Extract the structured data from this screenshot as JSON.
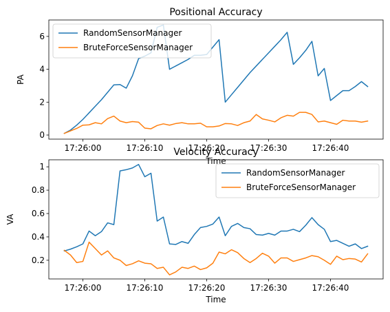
{
  "chart_data": [
    {
      "type": "line",
      "title": "Positional Accuracy",
      "xlabel": "Time",
      "ylabel": "PA",
      "x_start": "17:25:57",
      "x_step_seconds": 1,
      "xticks": [
        "17:26:00",
        "17:26:10",
        "17:26:20",
        "17:26:30",
        "17:26:40"
      ],
      "yticks": [
        0,
        2,
        4,
        6
      ],
      "ylim": [
        -0.25,
        7.0
      ],
      "legend": "upper-left",
      "series": [
        {
          "name": "RandomSensorManager",
          "color": "#1f77b4",
          "values": [
            0.1,
            0.3,
            0.6,
            0.95,
            1.35,
            1.75,
            2.15,
            2.6,
            3.05,
            3.07,
            2.85,
            3.6,
            4.65,
            4.8,
            5.0,
            6.55,
            6.7,
            4.0,
            4.2,
            4.4,
            4.6,
            4.85,
            4.85,
            4.9,
            5.35,
            5.8,
            2.0,
            2.45,
            2.9,
            3.35,
            3.8,
            4.2,
            4.6,
            5.0,
            5.4,
            5.8,
            6.25,
            4.3,
            4.7,
            5.15,
            5.7,
            3.6,
            4.05,
            2.1,
            2.4,
            2.7,
            2.7,
            2.95,
            3.25,
            2.95
          ]
        },
        {
          "name": "BruteForceSensorManager",
          "color": "#ff7f0e",
          "values": [
            0.1,
            0.25,
            0.4,
            0.6,
            0.62,
            0.75,
            0.68,
            1.0,
            1.15,
            0.85,
            0.75,
            0.82,
            0.78,
            0.42,
            0.38,
            0.58,
            0.68,
            0.6,
            0.7,
            0.75,
            0.68,
            0.68,
            0.72,
            0.5,
            0.5,
            0.55,
            0.7,
            0.68,
            0.58,
            0.75,
            0.85,
            1.25,
            0.98,
            0.9,
            0.8,
            1.05,
            1.2,
            1.15,
            1.38,
            1.38,
            1.25,
            0.8,
            0.85,
            0.75,
            0.65,
            0.9,
            0.85,
            0.85,
            0.78,
            0.85
          ]
        }
      ]
    },
    {
      "type": "line",
      "title": "Velocity Accuracy",
      "xlabel": "Time",
      "ylabel": "VA",
      "x_start": "17:25:57",
      "x_step_seconds": 1,
      "xticks": [
        "17:26:00",
        "17:26:10",
        "17:26:20",
        "17:26:30",
        "17:26:40"
      ],
      "yticks": [
        0.2,
        0.4,
        0.6,
        0.8,
        1.0
      ],
      "ylim": [
        0.04,
        1.06
      ],
      "legend": "upper-right",
      "series": [
        {
          "name": "RandomSensorManager",
          "color": "#1f77b4",
          "values": [
            0.28,
            0.295,
            0.315,
            0.34,
            0.45,
            0.41,
            0.445,
            0.52,
            0.505,
            0.965,
            0.975,
            0.99,
            1.02,
            0.915,
            0.945,
            0.535,
            0.57,
            0.34,
            0.335,
            0.36,
            0.345,
            0.42,
            0.48,
            0.49,
            0.51,
            0.57,
            0.41,
            0.49,
            0.515,
            0.48,
            0.47,
            0.42,
            0.415,
            0.43,
            0.415,
            0.45,
            0.45,
            0.465,
            0.445,
            0.5,
            0.565,
            0.505,
            0.465,
            0.36,
            0.37,
            0.345,
            0.32,
            0.34,
            0.3,
            0.32
          ]
        },
        {
          "name": "BruteForceSensorManager",
          "color": "#ff7f0e",
          "values": [
            0.285,
            0.245,
            0.18,
            0.19,
            0.355,
            0.3,
            0.245,
            0.28,
            0.22,
            0.2,
            0.155,
            0.17,
            0.195,
            0.175,
            0.17,
            0.13,
            0.14,
            0.075,
            0.1,
            0.14,
            0.13,
            0.15,
            0.12,
            0.135,
            0.175,
            0.27,
            0.255,
            0.29,
            0.265,
            0.215,
            0.18,
            0.215,
            0.26,
            0.235,
            0.175,
            0.22,
            0.22,
            0.19,
            0.205,
            0.22,
            0.24,
            0.23,
            0.2,
            0.165,
            0.235,
            0.205,
            0.215,
            0.21,
            0.185,
            0.255
          ]
        }
      ]
    }
  ]
}
